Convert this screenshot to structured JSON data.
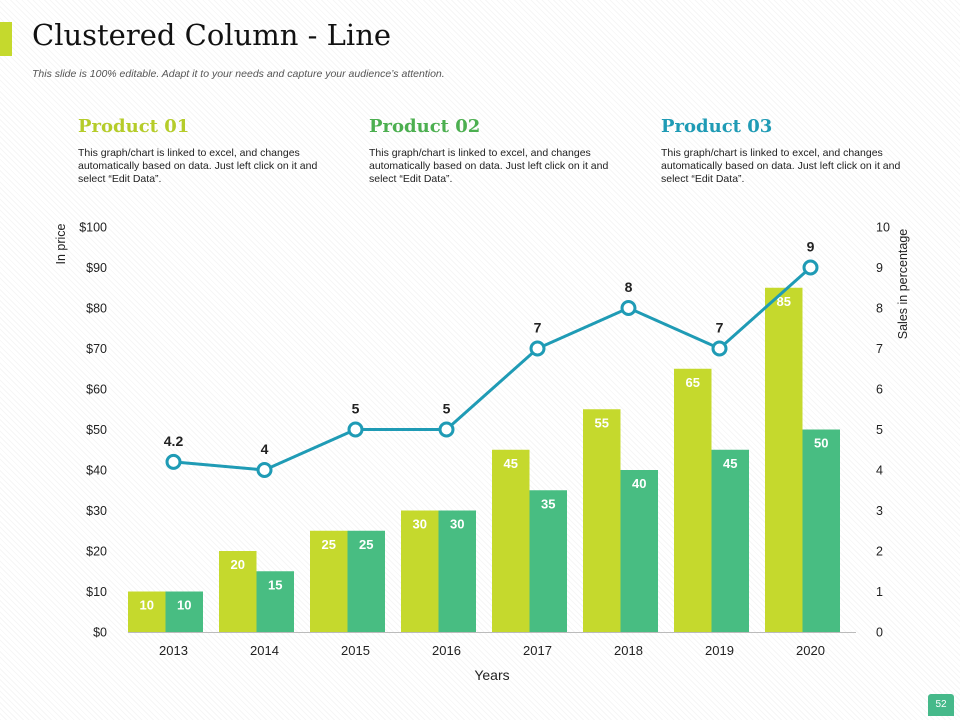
{
  "header": {
    "title": "Clustered Column - Line",
    "subtitle": "This slide is 100% editable. Adapt it to your needs and capture your audience’s attention."
  },
  "products": [
    {
      "title": "Product 01",
      "desc": "This graph/chart is linked to excel, and changes automatically based on data. Just left click on it and select “Edit Data”."
    },
    {
      "title": "Product 02",
      "desc": "This graph/chart is linked to excel, and changes automatically based on data. Just left click on it and select “Edit Data”."
    },
    {
      "title": "Product 03",
      "desc": "This graph/chart is linked to excel, and changes automatically based on data. Just left click on it and select “Edit Data”."
    }
  ],
  "page_number": "52",
  "colors": {
    "accent": "#c5d92d",
    "series1": "#c5d92d",
    "series2": "#48bd82",
    "line": "#1f9bb5"
  },
  "chart_data": {
    "type": "bar",
    "categories": [
      "2013",
      "2014",
      "2015",
      "2016",
      "2017",
      "2018",
      "2019",
      "2020"
    ],
    "series": [
      {
        "values": [
          10,
          20,
          25,
          30,
          45,
          55,
          65,
          85
        ],
        "axis": "left",
        "kind": "bar"
      },
      {
        "values": [
          10,
          15,
          25,
          30,
          35,
          40,
          45,
          50
        ],
        "axis": "left",
        "kind": "bar"
      },
      {
        "values": [
          4.2,
          4,
          5,
          5,
          7,
          8,
          7,
          9
        ],
        "axis": "right",
        "kind": "line"
      }
    ],
    "xlabel": "Years",
    "ylabel": "In price",
    "y2label": "Sales in percentage",
    "ylim": [
      0,
      100
    ],
    "y2lim": [
      0,
      10
    ],
    "yticks": [
      "$0",
      "$10",
      "$20",
      "$30",
      "$40",
      "$50",
      "$60",
      "$70",
      "$80",
      "$90",
      "$100"
    ],
    "y2ticks": [
      "0",
      "1",
      "2",
      "3",
      "4",
      "5",
      "6",
      "7",
      "8",
      "9",
      "10"
    ],
    "grid": false
  }
}
